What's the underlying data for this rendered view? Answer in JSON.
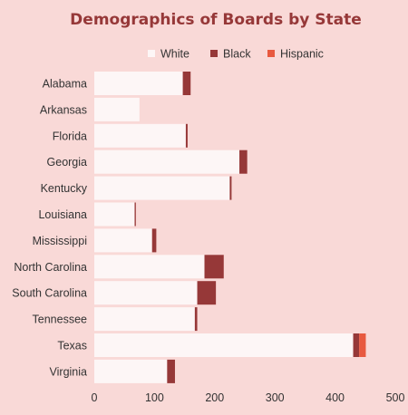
{
  "chart_data": {
    "type": "bar",
    "orientation": "horizontal",
    "stacked": true,
    "title": "Demographics of Boards by State",
    "categories": [
      "Alabama",
      "Arkansas",
      "Florida",
      "Georgia",
      "Kentucky",
      "Louisiana",
      "Mississippi",
      "North Carolina",
      "South Carolina",
      "Tennessee",
      "Texas",
      "Virginia"
    ],
    "series": [
      {
        "name": "White",
        "color": "#fdf6f6",
        "values": [
          147,
          75,
          152,
          241,
          225,
          67,
          96,
          183,
          171,
          167,
          430,
          121
        ]
      },
      {
        "name": "Black",
        "color": "#963838",
        "values": [
          13,
          0,
          3,
          13,
          3,
          2,
          7,
          32,
          31,
          4,
          10,
          13
        ]
      },
      {
        "name": "Hispanic",
        "color": "#e8593f",
        "values": [
          0,
          0,
          0,
          0,
          0,
          0,
          0,
          0,
          0,
          0,
          11,
          0
        ]
      }
    ],
    "xlim": [
      0,
      500
    ],
    "xticks": [
      0,
      100,
      200,
      300,
      400,
      500
    ],
    "xlabel": "",
    "ylabel": "",
    "grid": false,
    "legend_position": "top"
  },
  "colors": {
    "background": "#f9d9d7",
    "title": "#963838",
    "text": "#333333"
  }
}
